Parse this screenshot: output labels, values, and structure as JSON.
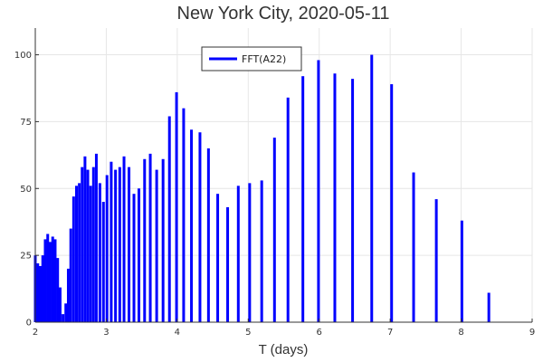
{
  "chart_data": {
    "type": "bar",
    "title": "New York City, 2020-05-11",
    "xlabel": "T (days)",
    "ylabel": "",
    "xlim": [
      2,
      9
    ],
    "ylim": [
      0,
      110
    ],
    "x_ticks": [
      2,
      3,
      4,
      5,
      6,
      7,
      8,
      9
    ],
    "y_ticks": [
      0,
      25,
      50,
      75,
      100
    ],
    "grid": true,
    "legend_position": "top-center",
    "series": [
      {
        "name": "FFT(A22)",
        "color": "#0000ff",
        "x": [
          2.0,
          2.035,
          2.07,
          2.105,
          2.14,
          2.175,
          2.21,
          2.245,
          2.28,
          2.315,
          2.35,
          2.39,
          2.43,
          2.465,
          2.5,
          2.54,
          2.58,
          2.62,
          2.66,
          2.7,
          2.74,
          2.78,
          2.82,
          2.86,
          2.91,
          2.96,
          3.01,
          3.07,
          3.13,
          3.19,
          3.25,
          3.32,
          3.39,
          3.46,
          3.54,
          3.62,
          3.71,
          3.8,
          3.89,
          3.99,
          4.09,
          4.2,
          4.32,
          4.44,
          4.57,
          4.71,
          4.86,
          5.02,
          5.19,
          5.37,
          5.56,
          5.77,
          5.99,
          6.22,
          6.47,
          6.74,
          7.02,
          7.33,
          7.65,
          8.01,
          8.39,
          8.8
        ],
        "values": [
          25,
          22,
          21,
          25,
          31,
          33,
          30,
          32,
          31,
          24,
          13,
          3,
          7,
          20,
          35,
          47,
          51,
          52,
          58,
          62,
          57,
          51,
          58,
          63,
          52,
          45,
          55,
          60,
          57,
          58,
          62,
          58,
          48,
          50,
          61,
          63,
          57,
          61,
          77,
          86,
          80,
          72,
          71,
          65,
          48,
          43,
          51,
          52,
          53,
          69,
          84,
          92,
          98,
          93,
          91,
          100,
          89,
          56,
          46,
          38,
          11,
          0
        ]
      }
    ]
  }
}
